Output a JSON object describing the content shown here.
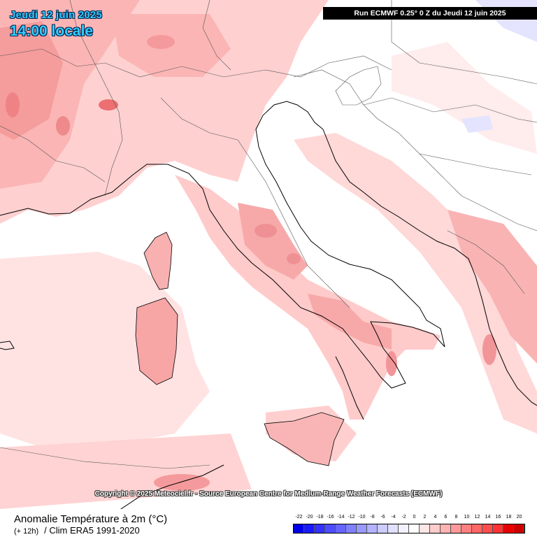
{
  "header": {
    "date": "Jeudi 12 juin 2025",
    "local_time": "14:00 locale",
    "run_info": "Run ECMWF 0.25° 0 Z du Jeudi 12 juin 2025"
  },
  "copyright": "Copyright © 2025 Meteociel.fr - Source European Centre for Medium-Range Weather Forecasts (ECMWF)",
  "footer": {
    "title": "Anomalie Température à 2m (°C)",
    "step": "(+ 12h)",
    "clim": "/ Clim ERA5 1991-2020"
  },
  "legend": {
    "tick_labels": [
      "-22",
      "-20",
      "-18",
      "-16",
      "-14",
      "-12",
      "-10",
      "-8",
      "-6",
      "-4",
      "-2",
      "0",
      "2",
      "4",
      "6",
      "8",
      "10",
      "12",
      "14",
      "16",
      "18",
      "20"
    ],
    "colors": [
      "#0000e6",
      "#1a1aff",
      "#3333ff",
      "#4d4dff",
      "#6666ff",
      "#8080ff",
      "#9999ff",
      "#b3b3ff",
      "#ccccff",
      "#e0e0ff",
      "#f2f2ff",
      "#ffffff",
      "#ffe6e6",
      "#ffcccc",
      "#ffb3b3",
      "#ff9999",
      "#ff8080",
      "#ff6666",
      "#ff4d4d",
      "#ff3333",
      "#e60000",
      "#cc0000"
    ]
  },
  "colors": {
    "warm_light": "#ffe2e2",
    "warm_mid": "#ffc8c8",
    "warm_strong": "#f7a3a3",
    "warm_hot": "#ee7f82",
    "cool": "#dcdcff",
    "border": "#555555",
    "coast": "#000000"
  }
}
